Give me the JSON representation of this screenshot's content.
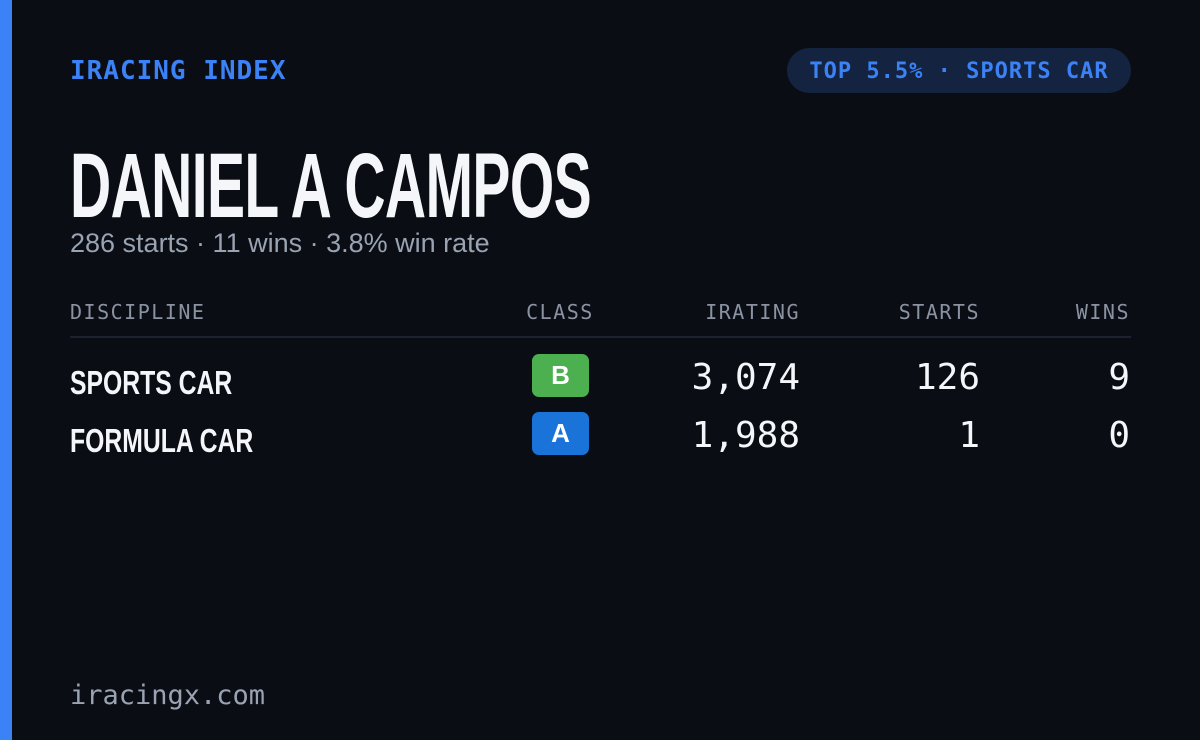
{
  "header": {
    "brand": "IRACING INDEX",
    "badge": "TOP 5.5% · SPORTS CAR"
  },
  "driver": {
    "name": "DANIEL A CAMPOS",
    "summary": "286 starts · 11 wins · 3.8% win rate"
  },
  "table": {
    "columns": [
      "DISCIPLINE",
      "CLASS",
      "IRATING",
      "STARTS",
      "WINS"
    ],
    "rows": [
      [
        "SPORTS CAR",
        "B",
        "3,074",
        "126",
        "9"
      ],
      [
        "FORMULA CAR",
        "A",
        "1,988",
        "1",
        "0"
      ]
    ]
  },
  "footer": {
    "site": "iracingx.com"
  }
}
